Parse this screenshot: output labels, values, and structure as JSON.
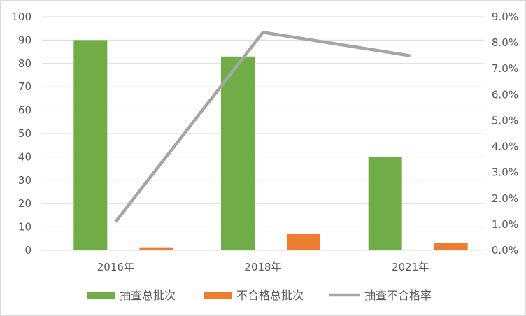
{
  "chart_data": {
    "type": "bar",
    "categories": [
      "2016年",
      "2018年",
      "2021年"
    ],
    "series": [
      {
        "name": "抽查总批次",
        "type": "bar",
        "axis": "left",
        "color": "#70ad47",
        "values": [
          90,
          83,
          40
        ]
      },
      {
        "name": "不合格总批次",
        "type": "bar",
        "axis": "left",
        "color": "#ed7d31",
        "values": [
          1,
          7,
          3
        ]
      },
      {
        "name": "抽查不合格率",
        "type": "line",
        "axis": "right",
        "color": "#a5a5a5",
        "values": [
          1.1,
          8.4,
          7.5
        ]
      }
    ],
    "y_left": {
      "ylim": [
        0,
        100
      ],
      "ticks": [
        "0",
        "10",
        "20",
        "30",
        "40",
        "50",
        "60",
        "70",
        "80",
        "90",
        "100"
      ]
    },
    "y_right": {
      "ylim": [
        0,
        9
      ],
      "ticks": [
        "0.0%",
        "1.0%",
        "2.0%",
        "3.0%",
        "4.0%",
        "5.0%",
        "6.0%",
        "7.0%",
        "8.0%",
        "9.0%"
      ]
    },
    "grid": true,
    "legend_position": "bottom"
  }
}
